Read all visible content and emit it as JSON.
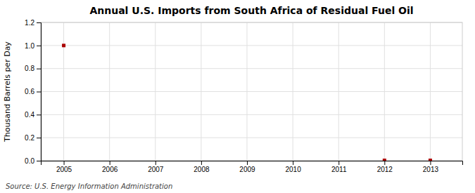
{
  "chart_data": {
    "type": "scatter",
    "title": "Annual U.S. Imports from South Africa of Residual Fuel Oil",
    "ylabel": "Thousand Barrels per Day",
    "annotations": [
      "Source: U.S. Energy Information Administration"
    ],
    "x": [
      2005,
      2012,
      2013
    ],
    "values": [
      1.0,
      0.003,
      0.003
    ],
    "color": "#aa0000",
    "marker": "square",
    "xlim": [
      2004.5,
      2013.7
    ],
    "ylim": [
      0.0,
      1.2
    ],
    "xticks": [
      2005,
      2006,
      2007,
      2008,
      2009,
      2010,
      2011,
      2012,
      2013
    ],
    "yticks": [
      {
        "value": 0.0,
        "label": "0.0"
      },
      0.2,
      0.4,
      0.6,
      0.8,
      {
        "value": 1.0,
        "label": "1.0"
      },
      1.2
    ],
    "grid": true
  }
}
